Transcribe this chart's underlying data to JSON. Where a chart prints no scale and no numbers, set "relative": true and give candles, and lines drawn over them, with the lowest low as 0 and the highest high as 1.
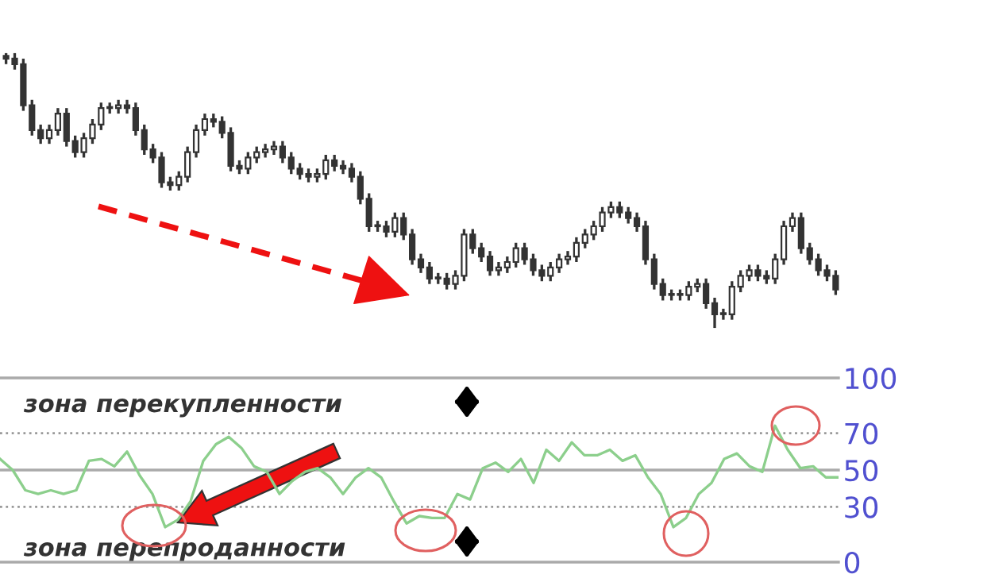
{
  "chart_data": [
    {
      "type": "candlestick",
      "relative": true,
      "color": "#333333",
      "categories": [
        null,
        null,
        null,
        null,
        null,
        null,
        null,
        null,
        null,
        null,
        null,
        null,
        null,
        null,
        null,
        null,
        null,
        null,
        null,
        null,
        null,
        null,
        null,
        null,
        null,
        null,
        null,
        null,
        null,
        null,
        null,
        null,
        null,
        null,
        null,
        null,
        null,
        null,
        null,
        null,
        null,
        null,
        null,
        null,
        null,
        null,
        null,
        null,
        null,
        null,
        null,
        null,
        null,
        null,
        null,
        null,
        null,
        null,
        null,
        null,
        null,
        null,
        null,
        null,
        null,
        null,
        null,
        null,
        null,
        null,
        null,
        null,
        null,
        null,
        null,
        null,
        null,
        null,
        null,
        null,
        null,
        null,
        null,
        null,
        null,
        null,
        null,
        null,
        null,
        null,
        null,
        null,
        null,
        null,
        null,
        null,
        null
      ],
      "ohlc": [
        [
          0.99,
          1.0,
          0.96,
          0.98
        ],
        [
          0.98,
          1.0,
          0.94,
          0.96
        ],
        [
          0.96,
          0.98,
          0.79,
          0.81
        ],
        [
          0.81,
          0.83,
          0.7,
          0.72
        ],
        [
          0.72,
          0.74,
          0.67,
          0.69
        ],
        [
          0.69,
          0.74,
          0.67,
          0.72
        ],
        [
          0.72,
          0.8,
          0.7,
          0.78
        ],
        [
          0.78,
          0.8,
          0.66,
          0.68
        ],
        [
          0.68,
          0.7,
          0.62,
          0.64
        ],
        [
          0.64,
          0.71,
          0.62,
          0.69
        ],
        [
          0.69,
          0.76,
          0.67,
          0.74
        ],
        [
          0.74,
          0.82,
          0.72,
          0.8
        ],
        [
          0.8,
          0.82,
          0.78,
          0.8
        ],
        [
          0.8,
          0.83,
          0.78,
          0.81
        ],
        [
          0.81,
          0.83,
          0.78,
          0.8
        ],
        [
          0.8,
          0.82,
          0.7,
          0.72
        ],
        [
          0.72,
          0.74,
          0.63,
          0.65
        ],
        [
          0.65,
          0.67,
          0.6,
          0.62
        ],
        [
          0.62,
          0.64,
          0.51,
          0.53
        ],
        [
          0.53,
          0.55,
          0.5,
          0.52
        ],
        [
          0.52,
          0.57,
          0.5,
          0.55
        ],
        [
          0.55,
          0.66,
          0.53,
          0.64
        ],
        [
          0.64,
          0.74,
          0.62,
          0.72
        ],
        [
          0.72,
          0.78,
          0.7,
          0.76
        ],
        [
          0.76,
          0.78,
          0.73,
          0.75
        ],
        [
          0.75,
          0.77,
          0.69,
          0.71
        ],
        [
          0.71,
          0.73,
          0.57,
          0.59
        ],
        [
          0.59,
          0.61,
          0.56,
          0.58
        ],
        [
          0.58,
          0.64,
          0.56,
          0.62
        ],
        [
          0.62,
          0.66,
          0.6,
          0.64
        ],
        [
          0.64,
          0.67,
          0.62,
          0.65
        ],
        [
          0.65,
          0.68,
          0.63,
          0.66
        ],
        [
          0.66,
          0.68,
          0.6,
          0.62
        ],
        [
          0.62,
          0.64,
          0.56,
          0.58
        ],
        [
          0.58,
          0.6,
          0.54,
          0.56
        ],
        [
          0.56,
          0.58,
          0.53,
          0.55
        ],
        [
          0.55,
          0.58,
          0.53,
          0.56
        ],
        [
          0.56,
          0.63,
          0.54,
          0.61
        ],
        [
          0.61,
          0.63,
          0.57,
          0.59
        ],
        [
          0.59,
          0.61,
          0.56,
          0.58
        ],
        [
          0.58,
          0.6,
          0.53,
          0.55
        ],
        [
          0.55,
          0.57,
          0.45,
          0.47
        ],
        [
          0.47,
          0.49,
          0.35,
          0.37
        ],
        [
          0.37,
          0.39,
          0.35,
          0.37
        ],
        [
          0.37,
          0.39,
          0.33,
          0.35
        ],
        [
          0.35,
          0.42,
          0.33,
          0.4
        ],
        [
          0.4,
          0.42,
          0.32,
          0.34
        ],
        [
          0.34,
          0.36,
          0.23,
          0.25
        ],
        [
          0.25,
          0.27,
          0.2,
          0.22
        ],
        [
          0.22,
          0.24,
          0.16,
          0.18
        ],
        [
          0.18,
          0.2,
          0.16,
          0.18
        ],
        [
          0.18,
          0.2,
          0.14,
          0.16
        ],
        [
          0.16,
          0.21,
          0.14,
          0.19
        ],
        [
          0.19,
          0.36,
          0.17,
          0.34
        ],
        [
          0.34,
          0.36,
          0.27,
          0.29
        ],
        [
          0.29,
          0.31,
          0.24,
          0.26
        ],
        [
          0.26,
          0.28,
          0.19,
          0.21
        ],
        [
          0.21,
          0.24,
          0.19,
          0.22
        ],
        [
          0.22,
          0.26,
          0.2,
          0.24
        ],
        [
          0.24,
          0.31,
          0.22,
          0.29
        ],
        [
          0.29,
          0.31,
          0.23,
          0.25
        ],
        [
          0.25,
          0.27,
          0.19,
          0.21
        ],
        [
          0.21,
          0.23,
          0.17,
          0.19
        ],
        [
          0.19,
          0.24,
          0.17,
          0.22
        ],
        [
          0.22,
          0.27,
          0.2,
          0.25
        ],
        [
          0.25,
          0.28,
          0.23,
          0.26
        ],
        [
          0.26,
          0.33,
          0.24,
          0.31
        ],
        [
          0.31,
          0.36,
          0.29,
          0.34
        ],
        [
          0.34,
          0.39,
          0.32,
          0.37
        ],
        [
          0.37,
          0.44,
          0.35,
          0.42
        ],
        [
          0.42,
          0.46,
          0.4,
          0.44
        ],
        [
          0.44,
          0.46,
          0.4,
          0.42
        ],
        [
          0.42,
          0.44,
          0.38,
          0.4
        ],
        [
          0.4,
          0.42,
          0.35,
          0.37
        ],
        [
          0.37,
          0.39,
          0.23,
          0.25
        ],
        [
          0.25,
          0.27,
          0.14,
          0.16
        ],
        [
          0.16,
          0.18,
          0.1,
          0.12
        ],
        [
          0.12,
          0.14,
          0.1,
          0.12
        ],
        [
          0.12,
          0.14,
          0.1,
          0.12
        ],
        [
          0.12,
          0.17,
          0.1,
          0.15
        ],
        [
          0.15,
          0.18,
          0.13,
          0.16
        ],
        [
          0.16,
          0.18,
          0.07,
          0.09
        ],
        [
          0.09,
          0.11,
          0.0,
          0.05
        ],
        [
          0.05,
          0.07,
          0.03,
          0.05
        ],
        [
          0.05,
          0.17,
          0.03,
          0.15
        ],
        [
          0.15,
          0.21,
          0.13,
          0.19
        ],
        [
          0.19,
          0.23,
          0.17,
          0.21
        ],
        [
          0.21,
          0.23,
          0.17,
          0.19
        ],
        [
          0.19,
          0.21,
          0.16,
          0.18
        ],
        [
          0.18,
          0.27,
          0.16,
          0.25
        ],
        [
          0.25,
          0.39,
          0.23,
          0.37
        ],
        [
          0.37,
          0.42,
          0.35,
          0.4
        ],
        [
          0.4,
          0.42,
          0.27,
          0.29
        ],
        [
          0.29,
          0.31,
          0.23,
          0.25
        ],
        [
          0.25,
          0.27,
          0.19,
          0.21
        ],
        [
          0.21,
          0.23,
          0.17,
          0.19
        ],
        [
          0.19,
          0.21,
          0.12,
          0.14
        ]
      ]
    },
    {
      "type": "line",
      "grid": false,
      "ylim": [
        0,
        100
      ],
      "yticks": [
        0,
        30,
        50,
        70,
        100
      ],
      "categories": [
        null,
        null,
        null,
        null,
        null,
        null,
        null,
        null,
        null,
        null,
        null,
        null,
        null,
        null,
        null,
        null,
        null,
        null,
        null,
        null,
        null,
        null,
        null,
        null,
        null,
        null,
        null,
        null,
        null,
        null,
        null,
        null,
        null,
        null,
        null,
        null,
        null,
        null,
        null,
        null,
        null,
        null,
        null,
        null,
        null,
        null,
        null,
        null,
        null,
        null,
        null,
        null,
        null,
        null,
        null,
        null,
        null,
        null,
        null,
        null,
        null,
        null,
        null,
        null,
        null,
        null,
        null
      ],
      "series": [
        {
          "color": "#8ccf8c",
          "values": [
            56,
            50,
            39,
            37,
            39,
            37,
            39,
            55,
            56,
            52,
            60,
            47,
            37,
            19,
            23,
            33,
            55,
            64,
            68,
            62,
            52,
            49,
            37,
            44,
            49,
            51,
            46,
            37,
            46,
            51,
            46,
            33,
            21,
            25,
            24,
            24,
            37,
            34,
            51,
            54,
            49,
            56,
            43,
            61,
            55,
            65,
            58,
            58,
            61,
            55,
            58,
            46,
            37,
            19,
            24,
            37,
            43,
            56,
            59,
            52,
            49,
            74,
            61,
            51,
            52,
            46,
            46
          ]
        }
      ],
      "ref_lines": [
        {
          "axis": "y",
          "value": 100,
          "color": "#aaaaaa",
          "line_style": "solid"
        },
        {
          "axis": "y",
          "value": 70,
          "color": "#999999",
          "line_style": "dotted"
        },
        {
          "axis": "y",
          "value": 50,
          "color": "#aaaaaa",
          "line_style": "solid"
        },
        {
          "axis": "y",
          "value": 30,
          "color": "#999999",
          "line_style": "dotted"
        },
        {
          "axis": "y",
          "value": 0,
          "color": "#aaaaaa",
          "line_style": "solid"
        }
      ],
      "annotations": [
        "зона перекупленности",
        "зона перепроданности"
      ]
    }
  ]
}
